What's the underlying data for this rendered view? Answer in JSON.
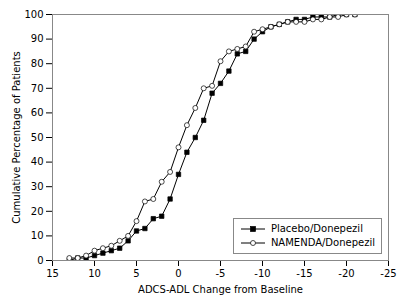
{
  "chart_data": {
    "type": "line",
    "xlabel": "ADCS-ADL Change from Baseline",
    "ylabel": "Cumulative Percentage of Patients",
    "x": [
      13,
      12,
      11,
      10,
      9,
      8,
      7,
      6,
      5,
      4,
      3,
      2,
      1,
      0,
      -1,
      -2,
      -3,
      -4,
      -5,
      -6,
      -7,
      -8,
      -9,
      -10,
      -11,
      -12,
      -13,
      -14,
      -15,
      -16,
      -17,
      -18,
      -19,
      -20,
      -21
    ],
    "series": [
      {
        "name": "Placebo/Donepezil",
        "color": "#000000",
        "marker": "square",
        "values": [
          0,
          1,
          1,
          2,
          3,
          4,
          5,
          8,
          12,
          13,
          17,
          18,
          25,
          35,
          44,
          50,
          57,
          68,
          72,
          77,
          84,
          85,
          90,
          93,
          95,
          96,
          97,
          98,
          98,
          99,
          99,
          99,
          100,
          100,
          100
        ]
      },
      {
        "name": "NAMENDA/Donepezil",
        "color": "#000000",
        "marker": "open_circle",
        "values": [
          1,
          1,
          2,
          4,
          5,
          6,
          8,
          10,
          16,
          24,
          25,
          32,
          36,
          46,
          55,
          62,
          70,
          71,
          81,
          85,
          86,
          87,
          93,
          94,
          95,
          96,
          97,
          97,
          97,
          98,
          98,
          99,
          99,
          100,
          100
        ]
      }
    ],
    "xlim": [
      15,
      -25
    ],
    "xticks": [
      15,
      10,
      5,
      0,
      -5,
      -10,
      -15,
      -20,
      -25
    ],
    "ylim": [
      0,
      100
    ],
    "yticks": [
      0,
      10,
      20,
      30,
      40,
      50,
      60,
      70,
      80,
      90,
      100
    ],
    "grid": false,
    "legend": "lower right"
  }
}
